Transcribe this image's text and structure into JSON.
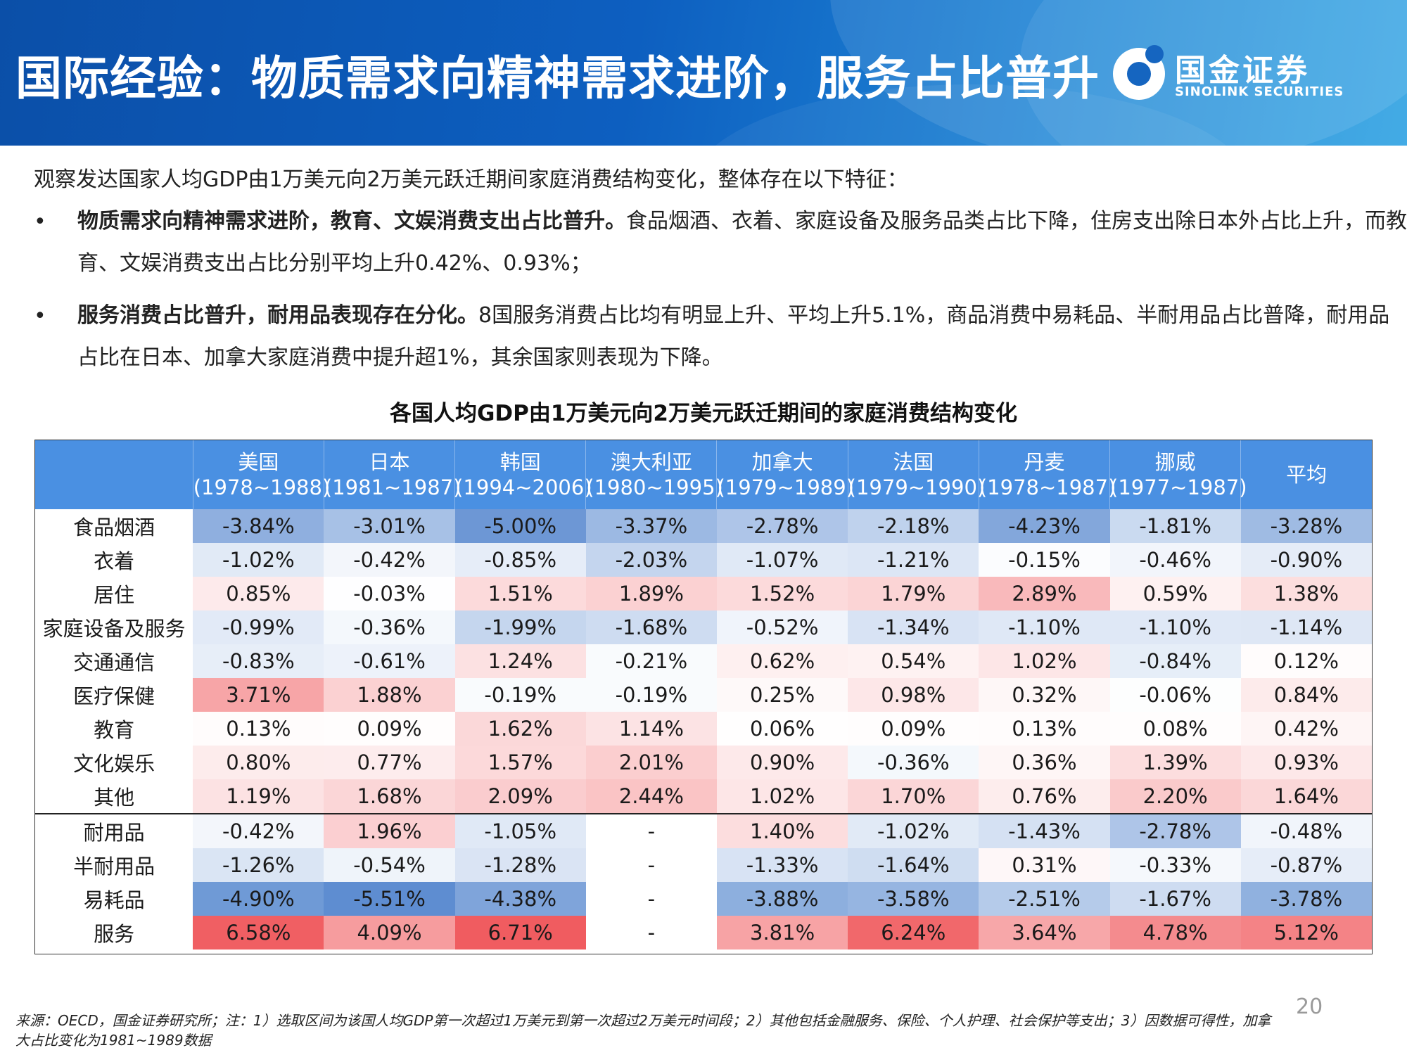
{
  "header": {
    "title": "国际经验：物质需求向精神需求进阶，服务占比普升",
    "logo_cn": "国金证券",
    "logo_en": "SINOLINK SECURITIES"
  },
  "intro": "观察发达国家人均GDP由1万美元向2万美元跃迁期间家庭消费结构变化，整体存在以下特征：",
  "bullets": [
    {
      "marker": "•",
      "bold": "物质需求向精神需求进阶，教育、文娱消费支出占比普升。",
      "text": "食品烟酒、衣着、家庭设备及服务品类占比下降，住房支出除日本外占比上升，而教育、文娱消费支出占比分别平均上升0.42%、0.93%；"
    },
    {
      "marker": "•",
      "bold": "服务消费占比普升，耐用品表现存在分化。",
      "text": "8国服务消费占比均有明显上升、平均上升5.1%，商品消费中易耗品、半耐用品占比普降，耐用品占比在日本、加拿大家庭消费中提升超1%，其余国家则表现为下降。"
    }
  ],
  "table": {
    "title": "各国人均GDP由1万美元向2万美元跃迁期间的家庭消费结构变化",
    "columns": [
      {
        "name": "美国",
        "period": "(1978~1988)"
      },
      {
        "name": "日本",
        "period": "(1981~1987)"
      },
      {
        "name": "韩国",
        "period": "(1994~2006)"
      },
      {
        "name": "澳大利亚",
        "period": "(1980~1995)"
      },
      {
        "name": "加拿大",
        "period": "(1979~1989)"
      },
      {
        "name": "法国",
        "period": "(1979~1990)"
      },
      {
        "name": "丹麦",
        "period": "(1978~1987)"
      },
      {
        "name": "挪威",
        "period": "(1977~1987)"
      },
      {
        "name": "平均",
        "period": ""
      }
    ],
    "rows": [
      {
        "label": "食品烟酒",
        "values": [
          "-3.84%",
          "-3.01%",
          "-5.00%",
          "-3.37%",
          "-2.78%",
          "-2.18%",
          "-4.23%",
          "-1.81%",
          "-3.28%"
        ]
      },
      {
        "label": "衣着",
        "values": [
          "-1.02%",
          "-0.42%",
          "-0.85%",
          "-2.03%",
          "-1.07%",
          "-1.21%",
          "-0.15%",
          "-0.46%",
          "-0.90%"
        ]
      },
      {
        "label": "居住",
        "values": [
          "0.85%",
          "-0.03%",
          "1.51%",
          "1.89%",
          "1.52%",
          "1.79%",
          "2.89%",
          "0.59%",
          "1.38%"
        ]
      },
      {
        "label": "家庭设备及服务",
        "values": [
          "-0.99%",
          "-0.36%",
          "-1.99%",
          "-1.68%",
          "-0.52%",
          "-1.34%",
          "-1.10%",
          "-1.10%",
          "-1.14%"
        ]
      },
      {
        "label": "交通通信",
        "values": [
          "-0.83%",
          "-0.61%",
          "1.24%",
          "-0.21%",
          "0.62%",
          "0.54%",
          "1.02%",
          "-0.84%",
          "0.12%"
        ]
      },
      {
        "label": "医疗保健",
        "values": [
          "3.71%",
          "1.88%",
          "-0.19%",
          "-0.19%",
          "0.25%",
          "0.98%",
          "0.32%",
          "-0.06%",
          "0.84%"
        ]
      },
      {
        "label": "教育",
        "values": [
          "0.13%",
          "0.09%",
          "1.62%",
          "1.14%",
          "0.06%",
          "0.09%",
          "0.13%",
          "0.08%",
          "0.42%"
        ]
      },
      {
        "label": "文化娱乐",
        "values": [
          "0.80%",
          "0.77%",
          "1.57%",
          "2.01%",
          "0.90%",
          "-0.36%",
          "0.36%",
          "1.39%",
          "0.93%"
        ]
      },
      {
        "label": "其他",
        "values": [
          "1.19%",
          "1.68%",
          "2.09%",
          "2.44%",
          "1.02%",
          "1.70%",
          "0.76%",
          "2.20%",
          "1.64%"
        ]
      },
      {
        "label": "耐用品",
        "values": [
          "-0.42%",
          "1.96%",
          "-1.05%",
          "-",
          "1.40%",
          "-1.02%",
          "-1.43%",
          "-2.78%",
          "-0.48%"
        ]
      },
      {
        "label": "半耐用品",
        "values": [
          "-1.26%",
          "-0.54%",
          "-1.28%",
          "-",
          "-1.33%",
          "-1.64%",
          "0.31%",
          "-0.33%",
          "-0.87%"
        ]
      },
      {
        "label": "易耗品",
        "values": [
          "-4.90%",
          "-5.51%",
          "-4.38%",
          "-",
          "-3.88%",
          "-3.58%",
          "-2.51%",
          "-1.67%",
          "-3.78%"
        ]
      },
      {
        "label": "服务",
        "values": [
          "6.58%",
          "4.09%",
          "6.71%",
          "-",
          "3.81%",
          "6.24%",
          "3.64%",
          "4.78%",
          "5.12%"
        ]
      }
    ],
    "colors": {
      "negative": "#5b8bd0",
      "positive": "#f05a5e",
      "header": "#4a90e2"
    }
  },
  "footnote": "来源：OECD，国金证券研究所；注：1）选取区间为该国人均GDP第一次超过1万美元到第一次超过2万美元时间段；2）其他包括金融服务、保险、个人护理、社会保护等支出；3）因数据可得性，加拿大占比变化为1981~1989数据",
  "page_number": "20"
}
